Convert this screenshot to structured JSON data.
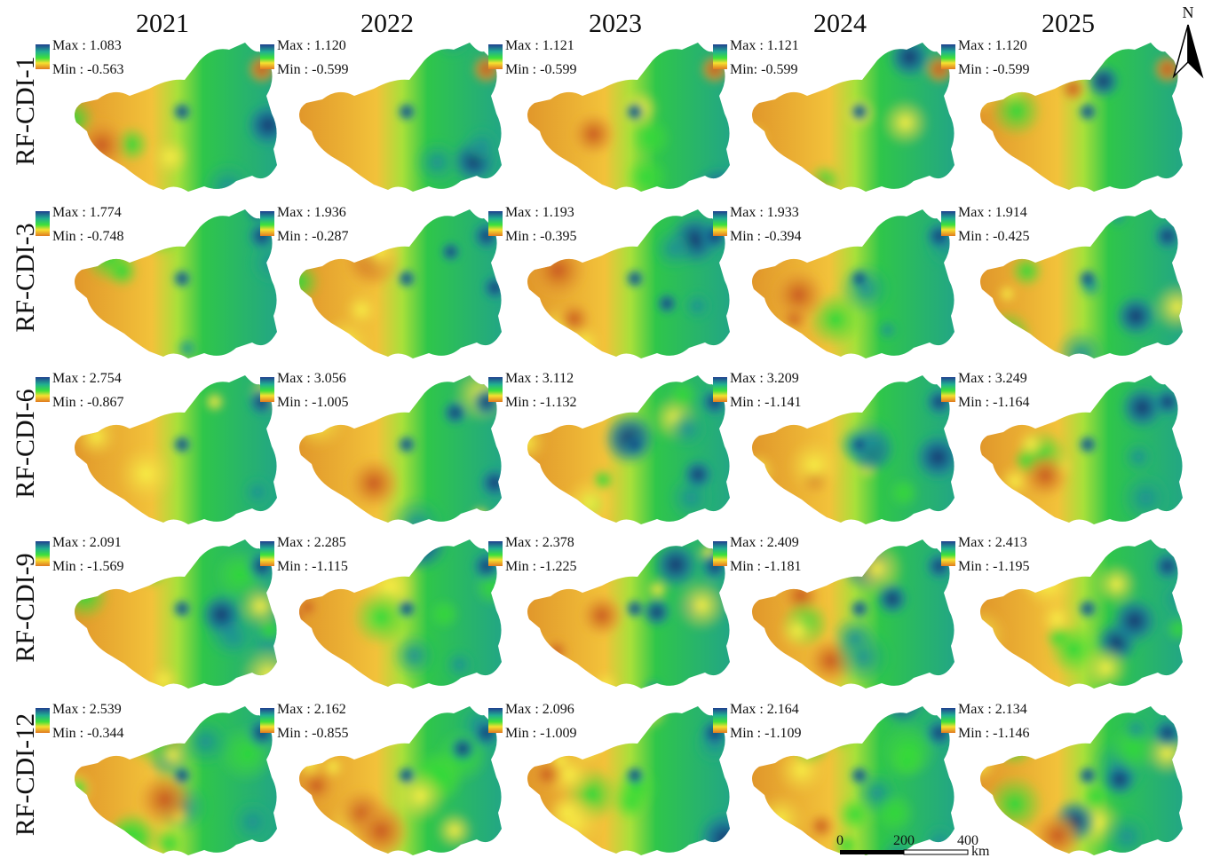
{
  "north": "N",
  "columns": [
    "2021",
    "2022",
    "2023",
    "2024",
    "2025"
  ],
  "rows": [
    {
      "label": "RF-CDI-1",
      "cells": [
        {
          "max": "Max : 1.083",
          "min": "Min : -0.563"
        },
        {
          "max": "Max : 1.120",
          "min": "Min : -0.599"
        },
        {
          "max": "Max : 1.121",
          "min": "Min : -0.599"
        },
        {
          "max": "Max : 1.121",
          "min": "Min: -0.599"
        },
        {
          "max": "Max : 1.120",
          "min": "Min : -0.599"
        }
      ]
    },
    {
      "label": "RF-CDI-3",
      "cells": [
        {
          "max": "Max : 1.774",
          "min": "Min : -0.748"
        },
        {
          "max": "Max : 1.936",
          "min": "Min : -0.287"
        },
        {
          "max": "Max : 1.193",
          "min": "Min : -0.395"
        },
        {
          "max": "Max : 1.933",
          "min": "Min : -0.394"
        },
        {
          "max": "Max : 1.914",
          "min": "Min : -0.425"
        }
      ]
    },
    {
      "label": "RF-CDI-6",
      "cells": [
        {
          "max": "Max : 2.754",
          "min": "Min : -0.867"
        },
        {
          "max": "Max : 3.056",
          "min": "Min : -1.005"
        },
        {
          "max": "Max : 3.112",
          "min": "Min : -1.132"
        },
        {
          "max": "Max : 3.209",
          "min": "Min : -1.141"
        },
        {
          "max": "Max : 3.249",
          "min": "Min : -1.164"
        }
      ]
    },
    {
      "label": "RF-CDI-9",
      "cells": [
        {
          "max": "Max : 2.091",
          "min": "Min : -1.569"
        },
        {
          "max": "Max : 2.285",
          "min": "Min : -1.115"
        },
        {
          "max": "Max : 2.378",
          "min": "Min : -1.225"
        },
        {
          "max": "Max : 2.409",
          "min": "Min : -1.181"
        },
        {
          "max": "Max : 2.413",
          "min": "Min : -1.195"
        }
      ]
    },
    {
      "label": "RF-CDI-12",
      "cells": [
        {
          "max": "Max : 2.539",
          "min": "Min : -0.344"
        },
        {
          "max": "Max : 2.162",
          "min": "Min : -0.855"
        },
        {
          "max": "Max : 2.096",
          "min": "Min : -1.009"
        },
        {
          "max": "Max : 2.164",
          "min": "Min : -1.109"
        },
        {
          "max": "Max : 2.134",
          "min": "Min : -1.146"
        }
      ]
    }
  ],
  "scale_bar": {
    "labels": [
      "0",
      "200",
      "400"
    ],
    "unit": "km"
  }
}
